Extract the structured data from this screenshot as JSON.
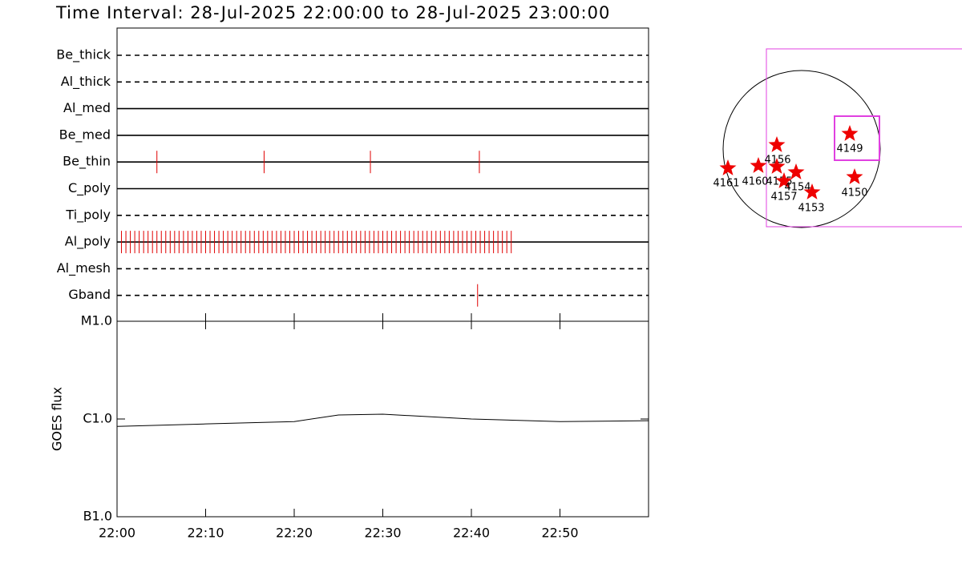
{
  "title": "Time Interval: 28-Jul-2025 22:00:00 to 28-Jul-2025 23:00:00",
  "chart_data": [
    {
      "type": "timeline",
      "categories": [
        "Be_thick",
        "Al_thick",
        "Al_med",
        "Be_med",
        "Be_thin",
        "C_poly",
        "Ti_poly",
        "Al_poly",
        "Al_mesh",
        "Gband"
      ],
      "dashed": [
        true,
        true,
        false,
        false,
        false,
        false,
        true,
        false,
        true,
        true
      ],
      "events": [
        [],
        [],
        [],
        [],
        [
          4.5,
          16.6,
          28.6,
          40.9
        ],
        [],
        [],
        [
          0.5,
          1,
          1.5,
          2,
          2.5,
          3,
          3.5,
          4,
          4.5,
          5,
          5.5,
          6,
          6.5,
          7,
          7.5,
          8,
          8.5,
          9,
          9.5,
          10,
          10.5,
          11,
          11.5,
          12,
          12.5,
          13,
          13.5,
          14,
          14.5,
          15,
          15.5,
          16,
          16.5,
          17,
          17.5,
          18,
          18.5,
          19,
          19.5,
          20,
          20.5,
          21,
          21.5,
          22,
          22.5,
          23,
          23.5,
          24,
          24.5,
          25,
          25.5,
          26,
          26.5,
          27,
          27.5,
          28,
          28.5,
          29,
          29.5,
          30,
          30.5,
          31,
          31.5,
          32,
          32.5,
          33,
          33.5,
          34,
          34.5,
          35,
          35.5,
          36,
          36.5,
          37,
          37.5,
          38,
          38.5,
          39,
          39.5,
          40,
          40.5,
          41,
          41.5,
          42,
          42.5,
          43,
          43.5,
          44,
          44.5
        ],
        [],
        [
          40.7
        ]
      ],
      "color": "#e00000",
      "xlim": [
        0,
        60
      ]
    },
    {
      "type": "line",
      "y_label": "GOES flux",
      "x": [
        0,
        10,
        20,
        25,
        30,
        40,
        50,
        60
      ],
      "values": [
        8.4e-07,
        8.9e-07,
        9.4e-07,
        1.1e-06,
        1.12e-06,
        1e-06,
        9.4e-07,
        9.6e-07
      ],
      "color": "#000000",
      "xlim": [
        0,
        60
      ],
      "xticks": [
        {
          "value": 0,
          "label": "22:00"
        },
        {
          "value": 10,
          "label": "22:10"
        },
        {
          "value": 20,
          "label": "22:20"
        },
        {
          "value": 30,
          "label": "22:30"
        },
        {
          "value": 40,
          "label": "22:40"
        },
        {
          "value": 50,
          "label": "22:50"
        }
      ],
      "ylim": [
        1e-07,
        1e-05
      ],
      "log_y": true,
      "yticks": [
        {
          "value": 1e-07,
          "label": "B1.0"
        },
        {
          "value": 1e-06,
          "label": "C1.0"
        },
        {
          "value": 1e-05,
          "label": "M1.0"
        }
      ]
    }
  ],
  "map": {
    "labels": [
      "4149",
      "4156",
      "4161",
      "4160",
      "4155",
      "4157",
      "4154",
      "4153",
      "4150"
    ],
    "star_color": "#ee0000"
  }
}
